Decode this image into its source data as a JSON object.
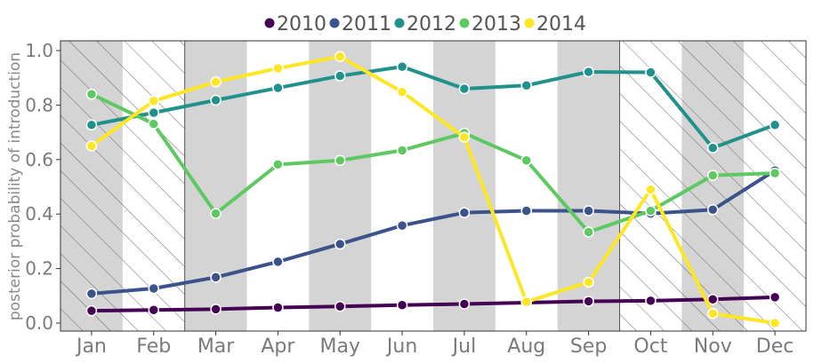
{
  "chart_data": {
    "type": "line",
    "categories": [
      "Jan",
      "Feb",
      "Mar",
      "Apr",
      "May",
      "Jun",
      "Jul",
      "Aug",
      "Sep",
      "Oct",
      "Nov",
      "Dec"
    ],
    "ylabel": "posterior probability of introduction",
    "ylim": [
      0,
      1.0
    ],
    "yticks": [
      "0.0",
      "0.2",
      "0.4",
      "0.6",
      "0.8",
      "1.0"
    ],
    "grid": false,
    "legend_position": "top",
    "background_shading": {
      "hatched_months": [
        "Jan",
        "Feb",
        "Oct",
        "Nov",
        "Dec"
      ],
      "grey_months": [
        "Jan",
        "Mar",
        "May",
        "Jul",
        "Sep",
        "Nov"
      ]
    },
    "series": [
      {
        "name": "2010",
        "color": "#440154",
        "values": [
          0.045,
          0.048,
          0.051,
          0.057,
          0.061,
          0.066,
          0.07,
          0.075,
          0.08,
          0.082,
          0.087,
          0.095
        ]
      },
      {
        "name": "2011",
        "color": "#3b528b",
        "values": [
          0.108,
          0.127,
          0.168,
          0.225,
          0.29,
          0.358,
          0.405,
          0.412,
          0.412,
          0.402,
          0.416,
          0.56
        ]
      },
      {
        "name": "2012",
        "color": "#21918c",
        "values": [
          0.727,
          0.772,
          0.818,
          0.863,
          0.907,
          0.941,
          0.86,
          0.872,
          0.922,
          0.92,
          0.643,
          0.727
        ]
      },
      {
        "name": "2013",
        "color": "#5ec962",
        "values": [
          0.84,
          0.731,
          0.402,
          0.582,
          0.597,
          0.634,
          0.697,
          0.597,
          0.334,
          0.412,
          0.542,
          0.55
        ]
      },
      {
        "name": "2014",
        "color": "#fde725",
        "values": [
          0.65,
          0.815,
          0.885,
          0.935,
          0.978,
          0.848,
          0.682,
          0.078,
          0.15,
          0.49,
          0.035,
          0.0
        ]
      }
    ]
  }
}
